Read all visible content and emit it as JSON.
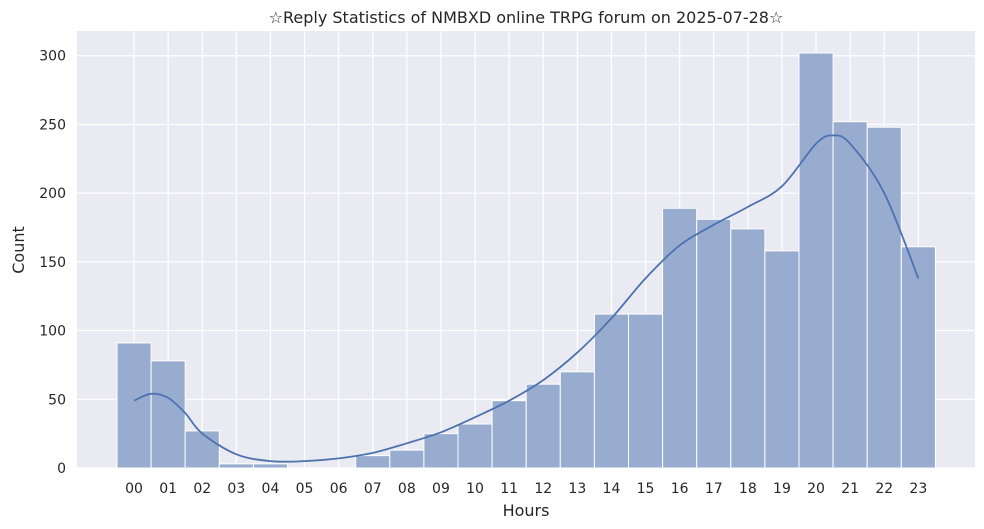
{
  "chart_data": {
    "type": "bar",
    "title": "☆Reply Statistics of NMBXD online TRPG forum on 2025-07-28☆",
    "xlabel": "Hours",
    "ylabel": "Count",
    "categories": [
      "00",
      "01",
      "02",
      "03",
      "04",
      "05",
      "06",
      "07",
      "08",
      "09",
      "10",
      "11",
      "12",
      "13",
      "14",
      "15",
      "16",
      "17",
      "18",
      "19",
      "20",
      "21",
      "22",
      "23"
    ],
    "values": [
      91,
      78,
      27,
      3,
      3,
      0,
      0,
      9,
      13,
      25,
      32,
      49,
      61,
      70,
      112,
      112,
      189,
      181,
      174,
      158,
      302,
      252,
      248,
      161
    ],
    "kde": {
      "x": [
        0,
        0.5,
        1,
        1.5,
        2,
        3,
        4,
        5,
        6,
        7,
        8,
        9,
        10,
        11,
        12,
        13,
        14,
        15,
        16,
        17,
        18,
        19,
        20,
        20.5,
        21,
        22,
        23
      ],
      "y": [
        49,
        54,
        51,
        40,
        25,
        10,
        5,
        5,
        7,
        11,
        18,
        26,
        37,
        49,
        64,
        84,
        109,
        138,
        162,
        177,
        190,
        205,
        236,
        242,
        236,
        200,
        138
      ]
    },
    "yticks": [
      0,
      50,
      100,
      150,
      200,
      250,
      300
    ],
    "ylim": [
      0,
      318
    ],
    "grid": true,
    "colors": {
      "background": "#eaeaf2",
      "grid": "#ffffff",
      "bar": "#98acd0",
      "line": "#4c72b0"
    }
  }
}
